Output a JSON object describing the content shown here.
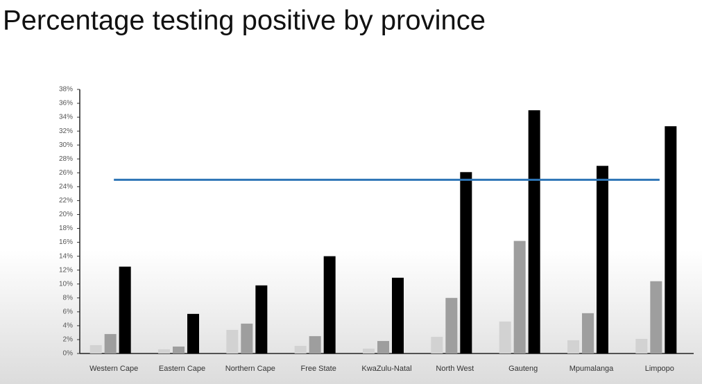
{
  "chart_data": {
    "type": "bar",
    "title": "Percentage testing positive by province",
    "categories": [
      "Western Cape",
      "Eastern Cape",
      "Northern Cape",
      "Free State",
      "KwaZulu-Natal",
      "North West",
      "Gauteng",
      "Mpumalanga",
      "Limpopo"
    ],
    "series": [
      {
        "color": "#d2d2d2",
        "values": [
          1.2,
          0.6,
          3.4,
          1.1,
          0.7,
          2.4,
          4.6,
          1.9,
          2.1
        ]
      },
      {
        "color": "#9e9e9e",
        "values": [
          2.8,
          1.0,
          4.3,
          2.5,
          1.8,
          8.0,
          16.2,
          5.8,
          10.4
        ]
      },
      {
        "color": "#000000",
        "values": [
          12.5,
          5.7,
          9.8,
          14.0,
          10.9,
          26.1,
          35.0,
          27.0,
          32.7
        ]
      }
    ],
    "reference_line": {
      "value": 25,
      "color": "#2e75b6"
    },
    "ylim": [
      0,
      38
    ],
    "yticks": [
      {
        "value": 0,
        "label": "0%"
      },
      {
        "value": 2,
        "label": "2%"
      },
      {
        "value": 4,
        "label": "4%"
      },
      {
        "value": 6,
        "label": "6%"
      },
      {
        "value": 8,
        "label": "8%"
      },
      {
        "value": 10,
        "label": "10%"
      },
      {
        "value": 12,
        "label": "12%"
      },
      {
        "value": 14,
        "label": "14%"
      },
      {
        "value": 16,
        "label": "16%"
      },
      {
        "value": 18,
        "label": "18%"
      },
      {
        "value": 20,
        "label": "20%"
      },
      {
        "value": 22,
        "label": "22%"
      },
      {
        "value": 24,
        "label": "24%"
      },
      {
        "value": 26,
        "label": "26%"
      },
      {
        "value": 28,
        "label": "28%"
      },
      {
        "value": 30,
        "label": "30%"
      },
      {
        "value": 32,
        "label": "32%"
      },
      {
        "value": 34,
        "label": "34%"
      },
      {
        "value": 36,
        "label": "36%"
      },
      {
        "value": 38,
        "label": "38%"
      }
    ],
    "grid": false
  }
}
